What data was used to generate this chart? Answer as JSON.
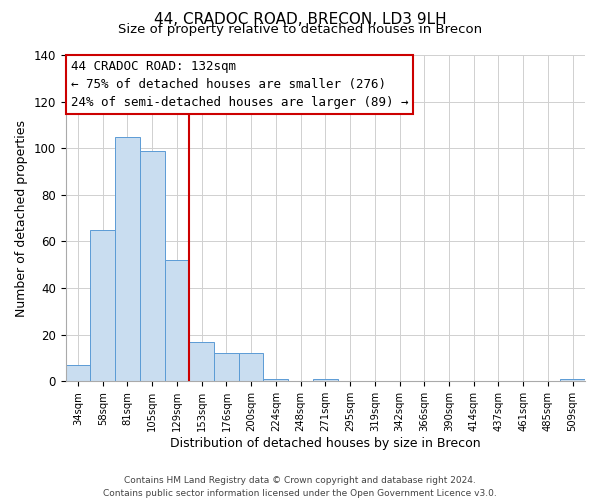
{
  "title": "44, CRADOC ROAD, BRECON, LD3 9LH",
  "subtitle": "Size of property relative to detached houses in Brecon",
  "xlabel": "Distribution of detached houses by size in Brecon",
  "ylabel": "Number of detached properties",
  "bar_labels": [
    "34sqm",
    "58sqm",
    "81sqm",
    "105sqm",
    "129sqm",
    "153sqm",
    "176sqm",
    "200sqm",
    "224sqm",
    "248sqm",
    "271sqm",
    "295sqm",
    "319sqm",
    "342sqm",
    "366sqm",
    "390sqm",
    "414sqm",
    "437sqm",
    "461sqm",
    "485sqm",
    "509sqm"
  ],
  "bar_values": [
    7,
    65,
    105,
    99,
    52,
    17,
    12,
    12,
    1,
    0,
    1,
    0,
    0,
    0,
    0,
    0,
    0,
    0,
    0,
    0,
    1
  ],
  "bar_color": "#c9ddf0",
  "bar_edge_color": "#5b9bd5",
  "ylim": [
    0,
    140
  ],
  "yticks": [
    0,
    20,
    40,
    60,
    80,
    100,
    120,
    140
  ],
  "vline_x_index": 4,
  "vline_color": "#cc0000",
  "annotation_line1": "44 CRADOC ROAD: 132sqm",
  "annotation_line2": "← 75% of detached houses are smaller (276)",
  "annotation_line3": "24% of semi-detached houses are larger (89) →",
  "footnote": "Contains HM Land Registry data © Crown copyright and database right 2024.\nContains public sector information licensed under the Open Government Licence v3.0.",
  "title_fontsize": 11,
  "xlabel_fontsize": 9,
  "ylabel_fontsize": 9,
  "annotation_fontsize": 9,
  "footnote_fontsize": 6.5
}
